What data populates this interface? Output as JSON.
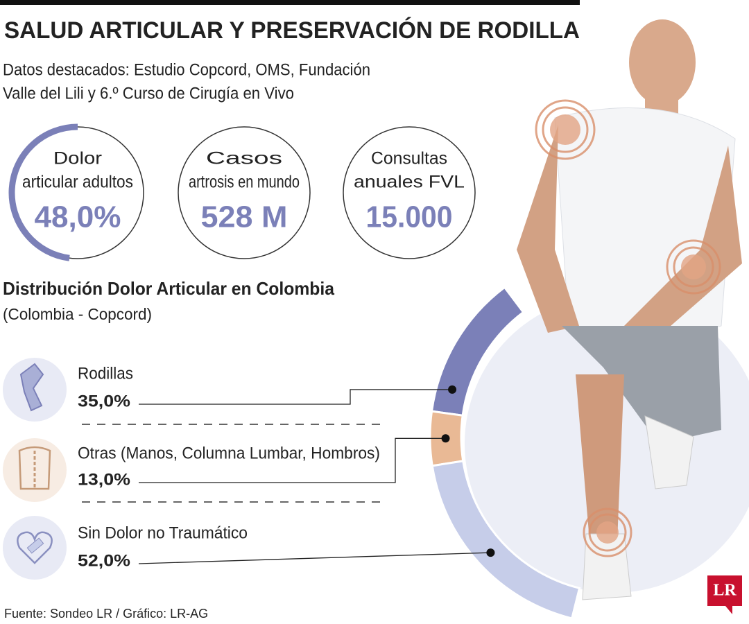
{
  "header": {
    "title": "SALUD ARTICULAR Y PRESERVACIÓN DE RODILLA",
    "subtitle": [
      "Datos destacados: Estudio Copcord, OMS, Fundación",
      "Valle del Lili y 6.º Curso de Cirugía en Vivo"
    ]
  },
  "stats": [
    {
      "label": [
        "Dolor",
        "articular adultos"
      ],
      "value": 48,
      "value_label": "48,0%"
    },
    {
      "label": [
        "Casos",
        "artrosis en mundo"
      ],
      "value_label": "528 M"
    },
    {
      "label": [
        "Consultas",
        "anuales FVL"
      ],
      "value_label": "15.000"
    }
  ],
  "chart_data": {
    "type": "pie",
    "title": "Distribución Dolor Articular en Colombia",
    "subtitle": "(Colombia - Copcord)",
    "categories": [
      "Rodillas",
      "Otras (Manos, Columna Lumbar, Hombros)",
      "Sin Dolor no Traumático"
    ],
    "values": [
      35,
      13,
      52
    ],
    "value_labels": [
      "35,0%",
      "13,0%",
      "52,0%"
    ],
    "colors": [
      "#7b80b8",
      "#e9b995",
      "#c6cde9"
    ]
  },
  "footer": {
    "source": "Fuente: Sondeo LR / Gráfico: LR-AG",
    "logo": "LR"
  }
}
